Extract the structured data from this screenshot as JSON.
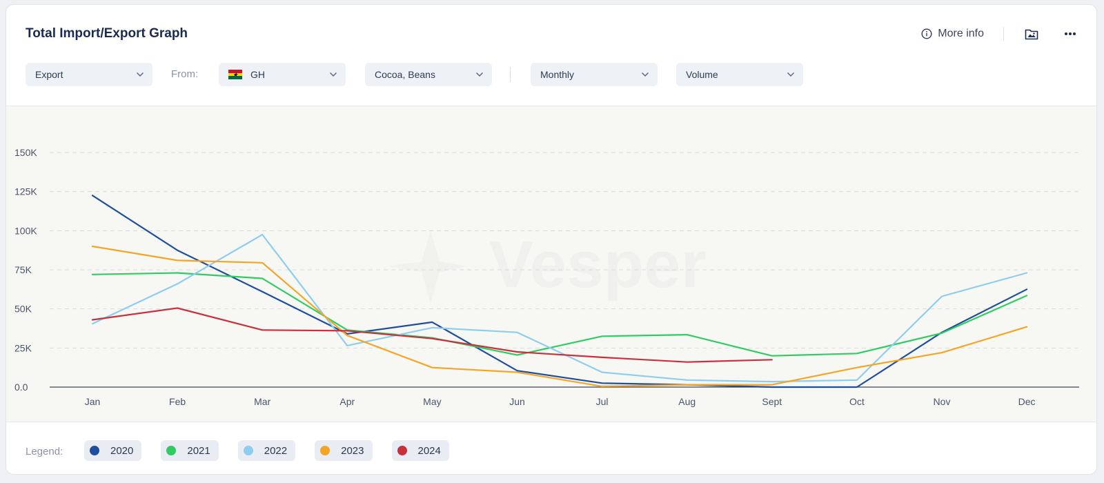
{
  "header": {
    "title": "Total Import/Export Graph",
    "more_info_label": "More info"
  },
  "filters": {
    "direction": "Export",
    "from_label": "From:",
    "country": "GH",
    "commodity": "Cocoa, Beans",
    "period": "Monthly",
    "measure": "Volume"
  },
  "watermark": "Vesper",
  "legend": {
    "title": "Legend:"
  },
  "chart_data": {
    "type": "line",
    "title": "Total Import/Export Graph",
    "xlabel": "",
    "ylabel": "",
    "categories": [
      "Jan",
      "Feb",
      "Mar",
      "Apr",
      "May",
      "Jun",
      "Jul",
      "Aug",
      "Sept",
      "Oct",
      "Nov",
      "Dec"
    ],
    "ylim": [
      0,
      150000
    ],
    "yticks": [
      0,
      25000,
      50000,
      75000,
      100000,
      125000,
      150000
    ],
    "ytick_labels": [
      "0.0",
      "25K",
      "50K",
      "75K",
      "100K",
      "125K",
      "150K"
    ],
    "grid": true,
    "legend_position": "bottom",
    "series": [
      {
        "name": "2020",
        "color": "#1f4e9c",
        "values": [
          122500,
          87500,
          61000,
          34000,
          41500,
          10500,
          2500,
          1500,
          0,
          0,
          35000,
          62500
        ]
      },
      {
        "name": "2021",
        "color": "#2ecc63",
        "values": [
          72000,
          73000,
          69500,
          36500,
          31500,
          20500,
          32500,
          33500,
          20000,
          21500,
          34500,
          58500
        ]
      },
      {
        "name": "2022",
        "color": "#8fcdef",
        "values": [
          40500,
          66000,
          97500,
          26500,
          38000,
          35000,
          9500,
          4500,
          3500,
          4500,
          58000,
          73000
        ]
      },
      {
        "name": "2023",
        "color": "#f5a524",
        "values": [
          90000,
          81000,
          79500,
          33000,
          12500,
          9500,
          500,
          1500,
          1500,
          12500,
          22000,
          38500
        ]
      },
      {
        "name": "2024",
        "color": "#c8303c",
        "values": [
          43000,
          50500,
          36500,
          36000,
          31000,
          22500,
          19000,
          16000,
          17500,
          null,
          null,
          null
        ]
      }
    ]
  }
}
